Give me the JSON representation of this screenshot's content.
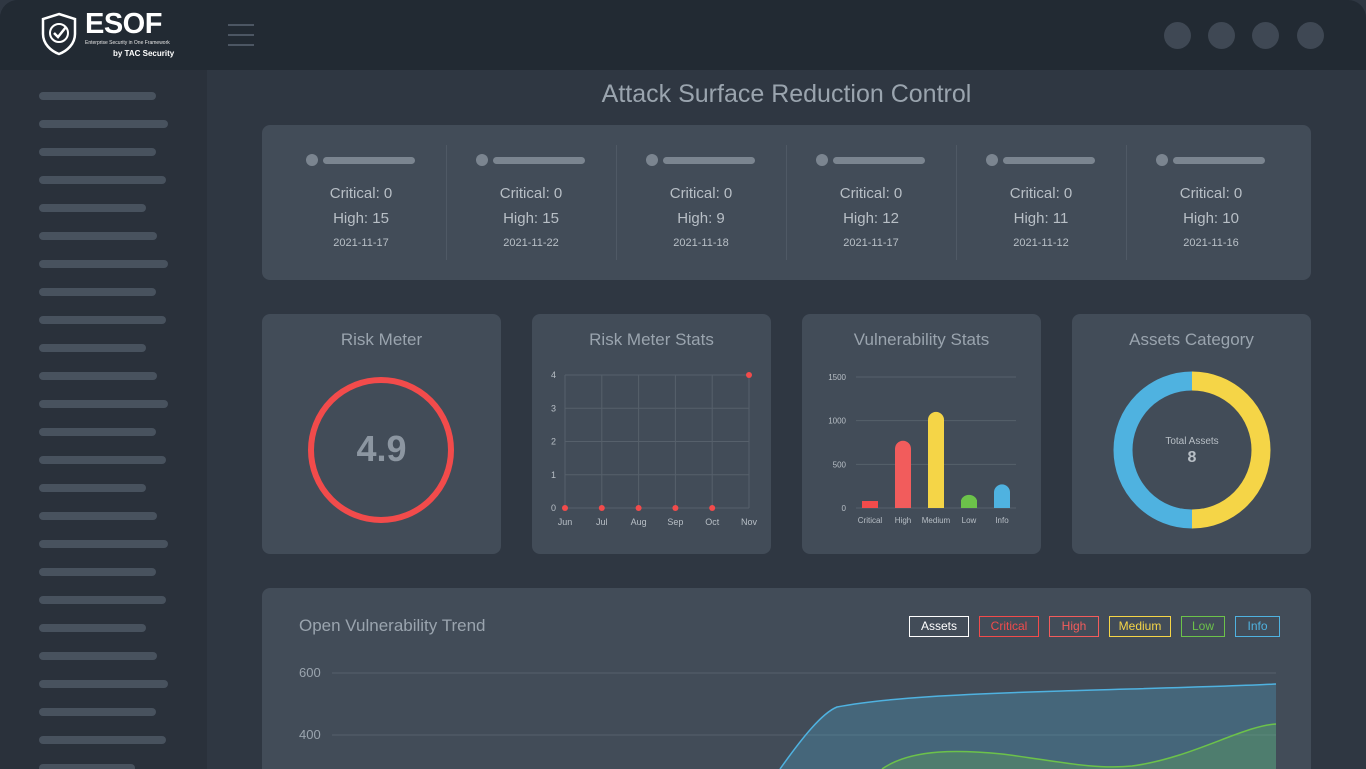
{
  "app": {
    "logo_text": "ESOF",
    "logo_tagline": "Enterprise Security in One Framework",
    "logo_by": "by TAC Security"
  },
  "page_title": "Attack Surface Reduction Control",
  "summary": [
    {
      "critical": "Critical: 0",
      "high": "High: 15",
      "date": "2021-11-17"
    },
    {
      "critical": "Critical: 0",
      "high": "High: 15",
      "date": "2021-11-22"
    },
    {
      "critical": "Critical: 0",
      "high": "High: 9",
      "date": "2021-11-18"
    },
    {
      "critical": "Critical: 0",
      "high": "High: 12",
      "date": "2021-11-17"
    },
    {
      "critical": "Critical: 0",
      "high": "High: 11",
      "date": "2021-11-12"
    },
    {
      "critical": "Critical: 0",
      "high": "High: 10",
      "date": "2021-11-16"
    }
  ],
  "risk_meter": {
    "title": "Risk Meter",
    "value": "4.9",
    "color": "#f24b4b"
  },
  "risk_meter_stats": {
    "title": "Risk Meter Stats"
  },
  "vulnerability_stats": {
    "title": "Vulnerability Stats"
  },
  "assets_category": {
    "title": "Assets Category",
    "center_label": "Total Assets",
    "center_value": "8"
  },
  "trend": {
    "title": "Open Vulnerability Trend",
    "legend": [
      {
        "label": "Assets",
        "color": "#ffffff"
      },
      {
        "label": "Critical",
        "color": "#f24b4b"
      },
      {
        "label": "High",
        "color": "#f25c5c"
      },
      {
        "label": "Medium",
        "color": "#f5d547"
      },
      {
        "label": "Low",
        "color": "#6cc24a"
      },
      {
        "label": "Info",
        "color": "#4fb2e0"
      }
    ],
    "y_labels": [
      "600",
      "400"
    ]
  },
  "chart_data": [
    {
      "type": "scatter",
      "title": "Risk Meter Stats",
      "categories": [
        "Jun",
        "Jul",
        "Aug",
        "Sep",
        "Oct",
        "Nov"
      ],
      "values": [
        0,
        0,
        0,
        0,
        0,
        4
      ],
      "ylim": [
        0,
        4
      ],
      "yticks": [
        "0",
        "1",
        "2",
        "3",
        "4"
      ],
      "grid": true,
      "color": "#f24b4b"
    },
    {
      "type": "bar",
      "title": "Vulnerability Stats",
      "categories": [
        "Critical",
        "High",
        "Medium",
        "Low",
        "Info"
      ],
      "values": [
        80,
        770,
        1100,
        150,
        270
      ],
      "colors": [
        "#f24b4b",
        "#f25c5c",
        "#f5d547",
        "#6cc24a",
        "#4fb2e0"
      ],
      "ylim": [
        0,
        1500
      ],
      "yticks": [
        "0",
        "500",
        "1000",
        "1500"
      ],
      "grid": true
    },
    {
      "type": "pie",
      "title": "Assets Category",
      "slices": [
        {
          "value": 4,
          "color": "#f5d547"
        },
        {
          "value": 4,
          "color": "#4fb2e0"
        }
      ]
    },
    {
      "type": "area",
      "title": "Open Vulnerability Trend",
      "yticks": [
        "600",
        "400"
      ],
      "series": [
        {
          "name": "Info",
          "color": "#4fb2e0"
        },
        {
          "name": "Low",
          "color": "#6cc24a"
        }
      ]
    }
  ]
}
